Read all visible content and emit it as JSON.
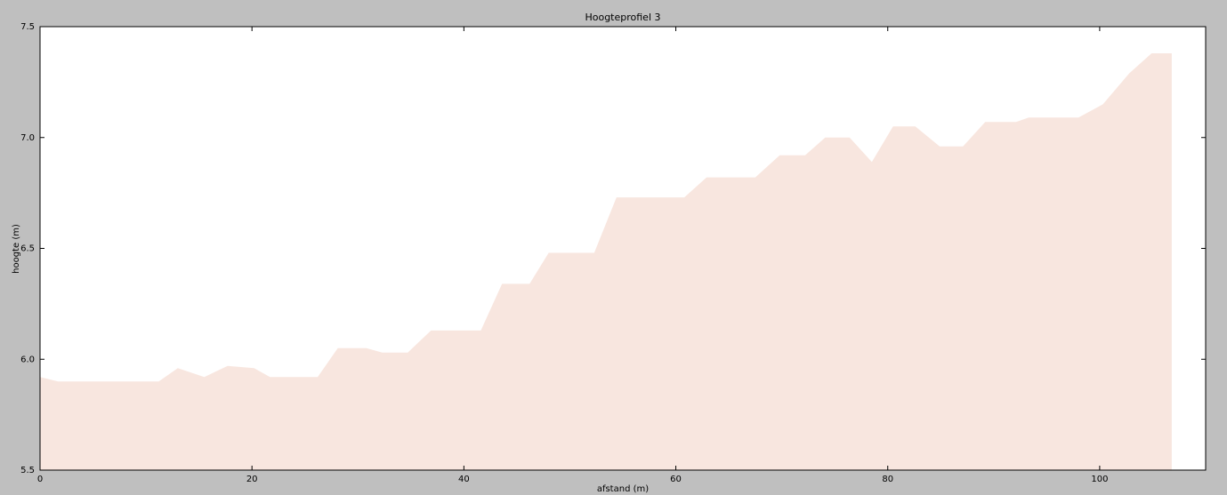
{
  "chart_data": {
    "type": "area",
    "title": "Hoogteprofiel 3",
    "xlabel": "afstand (m)",
    "ylabel": "hoogte (m)",
    "x": [
      0,
      1.7,
      11.2,
      13.0,
      15.5,
      17.7,
      20.2,
      21.7,
      26.2,
      28.1,
      30.8,
      32.3,
      34.7,
      36.9,
      41.6,
      43.6,
      46.2,
      48.0,
      52.3,
      54.4,
      60.8,
      62.9,
      67.5,
      69.8,
      72.2,
      74.1,
      76.4,
      78.5,
      80.5,
      82.6,
      84.9,
      87.1,
      89.2,
      92.1,
      93.3,
      98.0,
      100.3,
      102.8,
      104.9,
      106.8
    ],
    "values": [
      5.92,
      5.9,
      5.9,
      5.96,
      5.92,
      5.97,
      5.96,
      5.92,
      5.92,
      6.05,
      6.05,
      6.03,
      6.03,
      6.13,
      6.13,
      6.34,
      6.34,
      6.48,
      6.48,
      6.73,
      6.73,
      6.82,
      6.82,
      6.92,
      6.92,
      7.0,
      7.0,
      6.89,
      7.05,
      7.05,
      6.96,
      6.96,
      7.07,
      7.07,
      7.09,
      7.09,
      7.15,
      7.29,
      7.38,
      7.38
    ],
    "color": "#f8e6df",
    "xlim": [
      0,
      110
    ],
    "xticks": [
      0,
      20,
      40,
      60,
      80,
      100
    ],
    "ylim": [
      5.5,
      7.5
    ],
    "yticks": [
      5.5,
      {
        "value": 6,
        "label": "6.0"
      },
      6.5,
      {
        "value": 7,
        "label": "7.0"
      },
      7.5
    ],
    "grid": false
  }
}
